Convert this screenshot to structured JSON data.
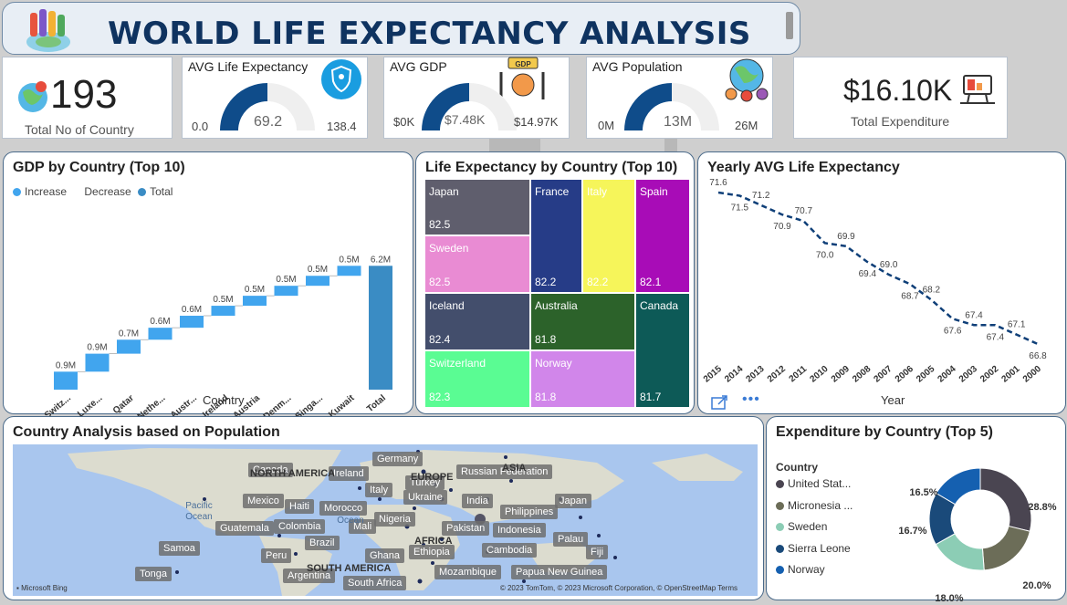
{
  "title": "WORLD LIFE EXPECTANCY ANALYSIS",
  "kpi_countries": {
    "value": "193",
    "label": "Total No of Country"
  },
  "kpi_life": {
    "label": "AVG Life Expectancy",
    "min": "0.0",
    "value": "69.2",
    "max": "138.4",
    "fraction": 0.5
  },
  "kpi_gdp": {
    "label": "AVG GDP",
    "min": "$0K",
    "value": "$7.48K",
    "max": "$14.97K",
    "fraction": 0.5
  },
  "kpi_pop": {
    "label": "AVG Population",
    "min": "0M",
    "value": "13M",
    "max": "26M",
    "fraction": 0.5
  },
  "kpi_exp": {
    "value": "$16.10K",
    "label": "Total Expenditure"
  },
  "gdp_chart": {
    "title": "GDP by Country (Top 10)",
    "xlabel": "Country",
    "legend": [
      "Increase",
      "Decrease",
      "Total"
    ],
    "colors": {
      "increase": "#41a5ee",
      "total": "#3a8cc4"
    },
    "chart_data": {
      "type": "bar",
      "subtype": "waterfall",
      "categories": [
        "Switz...",
        "Luxe...",
        "Qatar",
        "Nethe...",
        "Austr...",
        "Ireland",
        "Austria",
        "Denm...",
        "Singa...",
        "Kuwait",
        "Total"
      ],
      "values": [
        0.9,
        0.9,
        0.7,
        0.6,
        0.6,
        0.5,
        0.5,
        0.5,
        0.5,
        0.5,
        6.2
      ],
      "labels": [
        "0.9M",
        "0.9M",
        "0.7M",
        "0.6M",
        "0.6M",
        "0.5M",
        "0.5M",
        "0.5M",
        "0.5M",
        "0.5M",
        "6.2M"
      ],
      "xlabel": "Country"
    }
  },
  "treemap": {
    "title": "Life Expectancy by Country (Top 10)",
    "cells": [
      {
        "name": "Japan",
        "value": "82.5",
        "color": "#5f5e6d"
      },
      {
        "name": "Sweden",
        "value": "82.5",
        "color": "#e98bd3"
      },
      {
        "name": "France",
        "value": "82.2",
        "color": "#263c87"
      },
      {
        "name": "Italy",
        "value": "82.2",
        "color": "#f6f55a"
      },
      {
        "name": "Spain",
        "value": "82.1",
        "color": "#a80cb7"
      },
      {
        "name": "Iceland",
        "value": "82.4",
        "color": "#434e6c"
      },
      {
        "name": "Australia",
        "value": "81.8",
        "color": "#2c622a"
      },
      {
        "name": "Canada",
        "value": "81.7",
        "color": "#0d5a57"
      },
      {
        "name": "Switzerland",
        "value": "82.3",
        "color": "#5afc93"
      },
      {
        "name": "Norway",
        "value": "81.8",
        "color": "#d186ea"
      }
    ]
  },
  "yearly": {
    "title": "Yearly AVG Life Expectancy",
    "xlabel": "Year",
    "chart_data": {
      "type": "line",
      "x": [
        "2015",
        "2014",
        "2013",
        "2012",
        "2011",
        "2010",
        "2009",
        "2008",
        "2007",
        "2006",
        "2005",
        "2004",
        "2003",
        "2002",
        "2001",
        "2000"
      ],
      "values": [
        71.6,
        71.5,
        71.2,
        70.9,
        70.7,
        70.0,
        69.9,
        69.4,
        69.0,
        68.7,
        68.2,
        67.6,
        67.4,
        67.4,
        67.1,
        66.8
      ],
      "xlabel": "Year"
    }
  },
  "map": {
    "title": "Country Analysis based on Population",
    "credit": "Microsoft Bing",
    "copyright": "© 2023 TomTom, © 2023 Microsoft Corporation, © OpenStreetMap  Terms",
    "region_labels": [
      "NORTH AMERICA",
      "SOUTH AMERICA",
      "AFRICA",
      "ASIA",
      "EUROPE"
    ],
    "ocean_labels": [
      "Pacific Ocean",
      "Ocean"
    ],
    "countries": [
      "Canada",
      "Germany",
      "Ireland",
      "Russian Federation",
      "Turkey",
      "Italy",
      "Ukraine",
      "Mexico",
      "Haiti",
      "Morocco",
      "India",
      "Philippines",
      "Japan",
      "Guatemala",
      "Colombia",
      "Mali",
      "Nigeria",
      "Pakistan",
      "Indonesia",
      "Samoa",
      "Brazil",
      "Palau",
      "Peru",
      "Ghana",
      "Ethiopia",
      "Cambodia",
      "Fiji",
      "Tonga",
      "Argentina",
      "Mozambique",
      "Papua New Guinea",
      "South Africa"
    ]
  },
  "donut": {
    "title": "Expenditure by Country (Top 5)",
    "legend_title": "Country",
    "chart_data": {
      "type": "pie",
      "categories": [
        "United Stat...",
        "Micronesia ...",
        "Sweden",
        "Sierra Leone",
        "Norway"
      ],
      "values": [
        28.8,
        20.0,
        18.0,
        16.7,
        16.5
      ],
      "labels": [
        "28.8%",
        "20.0%",
        "18.0%",
        "16.7%",
        "16.5%"
      ],
      "colors": [
        "#4a4551",
        "#6c6d58",
        "#8ccdb5",
        "#1a4a7a",
        "#1560b0"
      ]
    }
  }
}
